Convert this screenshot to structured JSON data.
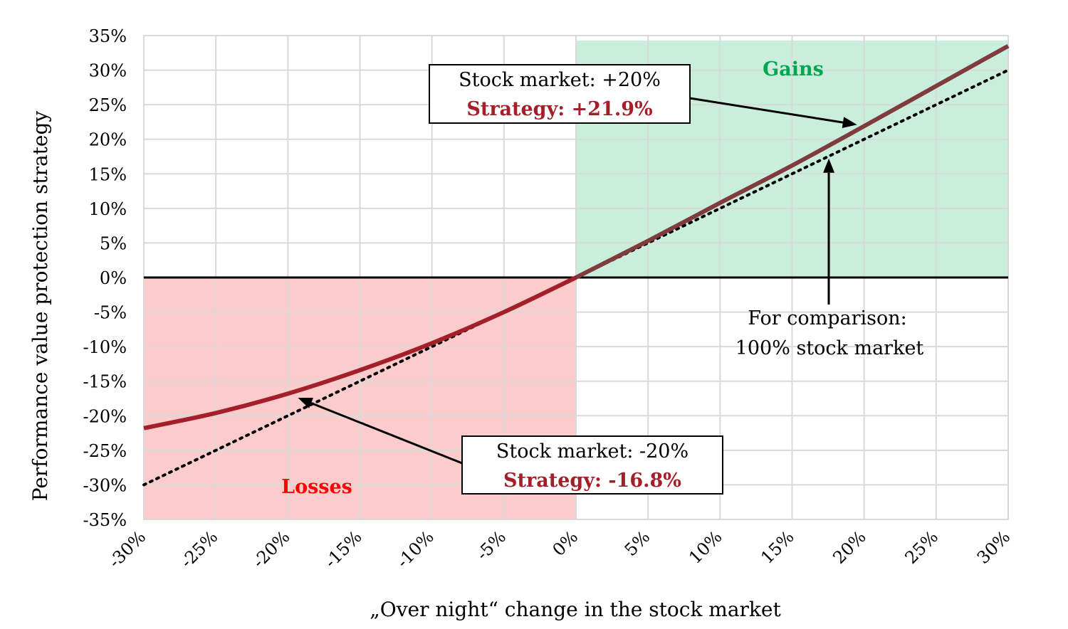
{
  "chart_data": {
    "type": "line",
    "title": "",
    "xlabel": "„Over night“ change in the stock market",
    "ylabel": "Performance value protection strategy",
    "xlim": [
      -30,
      30
    ],
    "ylim": [
      -35,
      35
    ],
    "x_ticks": [
      "-30%",
      "-25%",
      "-20%",
      "-15%",
      "-10%",
      "-5%",
      "0%",
      "5%",
      "10%",
      "15%",
      "20%",
      "25%",
      "30%"
    ],
    "y_ticks": [
      "35%",
      "30%",
      "25%",
      "20%",
      "15%",
      "10%",
      "5%",
      "0%",
      "-5%",
      "-10%",
      "-15%",
      "-20%",
      "-25%",
      "-30%",
      "-35%"
    ],
    "grid": true,
    "series": [
      {
        "color": "#a31f2a",
        "style": "solid",
        "x": [
          -30,
          -25,
          -20,
          -15,
          -10,
          -5,
          0,
          5,
          10,
          15,
          20,
          25,
          30
        ],
        "y": [
          -21.8,
          -19.6,
          -16.8,
          -13.4,
          -9.5,
          -5.0,
          0,
          5.3,
          10.8,
          16.2,
          21.9,
          27.7,
          33.5
        ]
      },
      {
        "color": "#000000",
        "style": "dotted",
        "x": [
          -30,
          30
        ],
        "y": [
          -30,
          30
        ]
      }
    ],
    "regions": [
      {
        "label": "Gains",
        "color": "#00a650",
        "fill": "#c9eedb",
        "x": [
          0,
          30
        ],
        "y": [
          0,
          34.3
        ]
      },
      {
        "label": "Losses",
        "color": "#ff0000",
        "fill": "#fccbcb",
        "x": [
          -30,
          0
        ],
        "y": [
          -35,
          0
        ]
      }
    ],
    "annotations": [
      {
        "line1": "Stock market: +20%",
        "line2": "Strategy: +21.9%",
        "color": "#a31f2a",
        "point": [
          20,
          21.9
        ]
      },
      {
        "line1": "Stock market: -20%",
        "line2": "Strategy: -16.8%",
        "color": "#a31f2a",
        "point": [
          -19.5,
          -17.2
        ]
      },
      {
        "line1": "For comparison:",
        "line2": "100% stock market",
        "point": [
          17.5,
          16.8
        ]
      }
    ]
  }
}
